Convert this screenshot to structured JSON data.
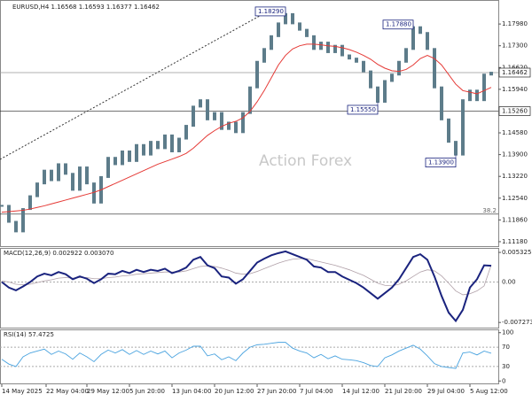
{
  "chart_data": {
    "type": "ohlc-indicators",
    "title": "EURUSD,H4  1.16568 1.16593 1.16377 1.16462",
    "watermark": "Action Forex",
    "closes": [
      1.123,
      1.118,
      1.115,
      1.122,
      1.126,
      1.13,
      1.134,
      1.131,
      1.136,
      1.133,
      1.128,
      1.135,
      1.13,
      1.124,
      1.132,
      1.138,
      1.136,
      1.14,
      1.137,
      1.142,
      1.139,
      1.143,
      1.141,
      1.145,
      1.14,
      1.144,
      1.148,
      1.154,
      1.156,
      1.15,
      1.152,
      1.147,
      1.149,
      1.146,
      1.152,
      1.16,
      1.168,
      1.172,
      1.176,
      1.18,
      1.1829,
      1.18,
      1.178,
      1.176,
      1.172,
      1.174,
      1.171,
      1.173,
      1.17,
      1.169,
      1.168,
      1.165,
      1.16,
      1.1555,
      1.162,
      1.164,
      1.168,
      1.172,
      1.1788,
      1.177,
      1.172,
      1.16,
      1.15,
      1.143,
      1.139,
      1.156,
      1.159,
      1.156,
      1.164,
      1.1646
    ],
    "ma": [
      1.121,
      1.1212,
      1.1214,
      1.1216,
      1.122,
      1.1225,
      1.123,
      1.1236,
      1.1242,
      1.1248,
      1.1254,
      1.126,
      1.1266,
      1.1272,
      1.128,
      1.129,
      1.13,
      1.131,
      1.132,
      1.133,
      1.134,
      1.135,
      1.136,
      1.1368,
      1.1376,
      1.1384,
      1.1394,
      1.141,
      1.143,
      1.145,
      1.1465,
      1.1478,
      1.1488,
      1.1494,
      1.1505,
      1.1525,
      1.1555,
      1.159,
      1.163,
      1.167,
      1.17,
      1.172,
      1.173,
      1.1735,
      1.1735,
      1.1733,
      1.173,
      1.1728,
      1.1724,
      1.1718,
      1.171,
      1.17,
      1.1688,
      1.1672,
      1.166,
      1.1652,
      1.165,
      1.1656,
      1.167,
      1.169,
      1.17,
      1.169,
      1.167,
      1.164,
      1.161,
      1.159,
      1.1585,
      1.158,
      1.159,
      1.16
    ],
    "candle_color": "#5d7c8a",
    "ma_color": "#e53935",
    "ylim": [
      1.1104,
      1.1873
    ],
    "yticks": [
      {
        "value": 1.1798,
        "label": "1.17980"
      },
      {
        "value": 1.173,
        "label": "1.17300"
      },
      {
        "value": 1.1662,
        "label": "1.16620"
      },
      {
        "value": 1.1594,
        "label": "1.15940"
      },
      {
        "value": 1.1458,
        "label": "1.14580"
      },
      {
        "value": 1.139,
        "label": "1.13900"
      },
      {
        "value": 1.1322,
        "label": "1.13220"
      },
      {
        "value": 1.1254,
        "label": "1.12540"
      },
      {
        "value": 1.1186,
        "label": "1.11860"
      },
      {
        "value": 1.1118,
        "label": "1.11180"
      }
    ],
    "levels": [
      {
        "value": 1.16462,
        "label": "1.16462"
      },
      {
        "value": 1.1526,
        "label": "1.15260"
      }
    ],
    "fib": {
      "label": "38.2",
      "value": 1.1204
    },
    "pivots": [
      {
        "x": 40,
        "value": 1.1829,
        "label": "1.18290"
      },
      {
        "x": 58,
        "value": 1.1788,
        "label": "1.17880"
      },
      {
        "x": 53,
        "value": 1.1555,
        "label": "1.15550"
      },
      {
        "x": 64,
        "value": 1.139,
        "label": "1.13900"
      }
    ],
    "xticks": [
      {
        "value": 0,
        "label": "14 May 2025"
      },
      {
        "value": 6.25,
        "label": "22 May 04:00"
      },
      {
        "value": 12,
        "label": "29 May 12:00"
      },
      {
        "value": 18,
        "label": "5 Jun 20:00"
      },
      {
        "value": 24,
        "label": "13 Jun 04:00"
      },
      {
        "value": 30,
        "label": "20 Jun 12:00"
      },
      {
        "value": 36,
        "label": "27 Jun 20:00"
      },
      {
        "value": 42,
        "label": "7 Jul 04:00"
      },
      {
        "value": 48,
        "label": "14 Jul 12:00"
      },
      {
        "value": 54,
        "label": "21 Jul 20:00"
      },
      {
        "value": 60,
        "label": "29 Jul 04:00"
      },
      {
        "value": 66,
        "label": "5 Aug 12:00"
      }
    ],
    "macd": {
      "title": "MACD(12,26,9) 0.002922 0.003070",
      "ylim": [
        -0.0082,
        0.00613
      ],
      "yticks": [
        {
          "value": 0.005325,
          "label": "0.005325"
        },
        {
          "value": 0,
          "label": "0.00"
        },
        {
          "value": -0.007273,
          "label": "-0.007273"
        }
      ],
      "series": [
        {
          "color": "#1a237e",
          "values": [
            0,
            -0.001,
            -0.0015,
            -0.0008,
            0,
            0.001,
            0.0015,
            0.0012,
            0.0018,
            0.0014,
            0.0005,
            0.001,
            0.0006,
            -0.0002,
            0.0005,
            0.0015,
            0.0014,
            0.002,
            0.0016,
            0.0022,
            0.0018,
            0.0022,
            0.002,
            0.0024,
            0.0016,
            0.002,
            0.0026,
            0.004,
            0.0045,
            0.003,
            0.0025,
            0.001,
            0.0008,
            -0.0003,
            0.0005,
            0.002,
            0.0035,
            0.0042,
            0.0048,
            0.0052,
            0.0055,
            0.005,
            0.0045,
            0.004,
            0.0028,
            0.0026,
            0.0018,
            0.0018,
            0.001,
            0.0004,
            -0.0002,
            -0.001,
            -0.002,
            -0.003,
            -0.002,
            -0.001,
            0.0005,
            0.0025,
            0.0045,
            0.005,
            0.004,
            0.001,
            -0.0025,
            -0.0055,
            -0.007,
            -0.005,
            -0.001,
            0.0005,
            0.003,
            0.002922
          ]
        },
        {
          "color": "#b0a0a8",
          "values": [
            0.0002,
            0,
            -0.0004,
            -0.0005,
            -0.0004,
            -0.0001,
            0.0002,
            0.0004,
            0.0007,
            0.0008,
            0.0007,
            0.0008,
            0.0008,
            0.0006,
            0.0006,
            0.0008,
            0.0009,
            0.0011,
            0.0012,
            0.0014,
            0.0015,
            0.0016,
            0.0017,
            0.0018,
            0.0018,
            0.0018,
            0.002,
            0.0024,
            0.0028,
            0.0029,
            0.0028,
            0.0025,
            0.0021,
            0.0016,
            0.0014,
            0.0015,
            0.0019,
            0.0024,
            0.0029,
            0.0034,
            0.0038,
            0.0041,
            0.0042,
            0.0042,
            0.0039,
            0.0036,
            0.0033,
            0.003,
            0.0026,
            0.0022,
            0.0017,
            0.0012,
            0.0005,
            -0.0002,
            -0.0006,
            -0.0007,
            -0.0004,
            0.0002,
            0.001,
            0.0018,
            0.0022,
            0.002,
            0.0011,
            -0.0002,
            -0.0016,
            -0.0023,
            -0.0021,
            -0.0016,
            -0.0007,
            0.00307
          ]
        }
      ]
    },
    "rsi": {
      "title": "RSI(14) 57.4725",
      "color": "#4aa3df",
      "ylim": [
        -5,
        105
      ],
      "yticks": [
        100,
        70,
        30,
        0
      ],
      "values": [
        45,
        35,
        30,
        50,
        58,
        62,
        66,
        55,
        62,
        56,
        45,
        58,
        50,
        40,
        55,
        64,
        58,
        65,
        55,
        63,
        55,
        62,
        56,
        62,
        48,
        58,
        64,
        72,
        72,
        52,
        56,
        44,
        50,
        42,
        58,
        70,
        75,
        76,
        78,
        80,
        80,
        68,
        62,
        58,
        48,
        55,
        46,
        52,
        45,
        44,
        42,
        38,
        32,
        30,
        48,
        54,
        62,
        68,
        74,
        66,
        52,
        36,
        30,
        28,
        26,
        58,
        60,
        54,
        62,
        57.4725
      ]
    }
  }
}
